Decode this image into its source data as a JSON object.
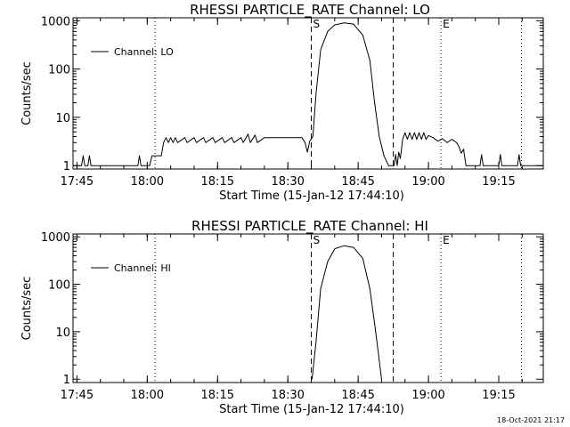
{
  "chart_data": [
    {
      "type": "line",
      "title": "RHESSI PARTICLE_RATE Channel: LO",
      "xlabel": "Start Time (15-Jan-12 17:44:10)",
      "ylabel": "Counts/sec",
      "x_tick_labels": [
        "17:45",
        "18:00",
        "18:15",
        "18:30",
        "18:45",
        "19:00",
        "19:15"
      ],
      "y_tick_labels": [
        "1",
        "10",
        "100",
        "1000"
      ],
      "yscale": "log",
      "xlim": [
        "17:44:10",
        "19:24:30"
      ],
      "ylim": [
        0.85,
        1150
      ],
      "legend": {
        "label": "Channel: LO",
        "placement": "top-left"
      },
      "markers": [
        {
          "time": "18:35:00",
          "style": "dashed",
          "label": "S"
        },
        {
          "time": "18:52:30",
          "style": "dashed",
          "label": ""
        },
        {
          "time": "18:01:40",
          "style": "dotted",
          "label": ""
        },
        {
          "time": "19:02:40",
          "style": "dotted",
          "label": "E"
        },
        {
          "time": "19:19:50",
          "style": "dotted",
          "label": ""
        }
      ],
      "series": [
        {
          "name": "Channel: LO",
          "points": [
            [
              "17:44:10",
              1
            ],
            [
              "17:46:00",
              1
            ],
            [
              "17:46:20",
              1.6
            ],
            [
              "17:46:40",
              1
            ],
            [
              "17:47:20",
              1
            ],
            [
              "17:47:40",
              1.6
            ],
            [
              "17:48:00",
              1
            ],
            [
              "17:58:00",
              1
            ],
            [
              "17:58:20",
              1.6
            ],
            [
              "17:58:40",
              1
            ],
            [
              "18:00:30",
              1
            ],
            [
              "18:01:00",
              1.6
            ],
            [
              "18:03:00",
              1.6
            ],
            [
              "18:03:30",
              3
            ],
            [
              "18:04:00",
              3.8
            ],
            [
              "18:04:30",
              3
            ],
            [
              "18:05:00",
              3.8
            ],
            [
              "18:05:30",
              3
            ],
            [
              "18:06:00",
              3.8
            ],
            [
              "18:06:30",
              3
            ],
            [
              "18:08:00",
              3.8
            ],
            [
              "18:08:30",
              3
            ],
            [
              "18:10:00",
              3.8
            ],
            [
              "18:10:30",
              3
            ],
            [
              "18:12:00",
              3.8
            ],
            [
              "18:12:30",
              3
            ],
            [
              "18:14:00",
              3.8
            ],
            [
              "18:14:30",
              3
            ],
            [
              "18:16:00",
              3.8
            ],
            [
              "18:16:30",
              3
            ],
            [
              "18:18:00",
              3.8
            ],
            [
              "18:18:30",
              3
            ],
            [
              "18:20:00",
              3.8
            ],
            [
              "18:20:30",
              3
            ],
            [
              "18:21:30",
              4.5
            ],
            [
              "18:22:00",
              3
            ],
            [
              "18:23:00",
              4.3
            ],
            [
              "18:23:30",
              3
            ],
            [
              "18:25:00",
              3.8
            ],
            [
              "18:25:30",
              3.8
            ],
            [
              "18:27:00",
              3.8
            ],
            [
              "18:29:00",
              3.8
            ],
            [
              "18:31:00",
              3.8
            ],
            [
              "18:33:00",
              3.8
            ],
            [
              "18:33:40",
              3
            ],
            [
              "18:34:10",
              1.9
            ],
            [
              "18:34:40",
              3.2
            ],
            [
              "18:35:20",
              4
            ],
            [
              "18:36:00",
              30
            ],
            [
              "18:37:00",
              250
            ],
            [
              "18:38:30",
              600
            ],
            [
              "18:40:00",
              820
            ],
            [
              "18:42:00",
              900
            ],
            [
              "18:44:00",
              850
            ],
            [
              "18:46:00",
              500
            ],
            [
              "18:47:30",
              150
            ],
            [
              "18:48:30",
              20
            ],
            [
              "18:49:30",
              4
            ],
            [
              "18:50:30",
              1.6
            ],
            [
              "18:51:30",
              1
            ],
            [
              "18:52:40",
              1
            ],
            [
              "18:53:00",
              1.7
            ],
            [
              "18:53:20",
              1
            ],
            [
              "18:53:40",
              1.9
            ],
            [
              "18:54:00",
              1.4
            ],
            [
              "18:54:30",
              3.5
            ],
            [
              "18:55:00",
              4.8
            ],
            [
              "18:55:30",
              3.5
            ],
            [
              "18:56:00",
              4.8
            ],
            [
              "18:56:30",
              3.5
            ],
            [
              "18:57:00",
              4.8
            ],
            [
              "18:57:30",
              3.5
            ],
            [
              "18:58:00",
              4.8
            ],
            [
              "18:58:30",
              3.5
            ],
            [
              "18:59:00",
              4.8
            ],
            [
              "18:59:30",
              3.5
            ],
            [
              "19:00:00",
              4.2
            ],
            [
              "19:01:00",
              3.8
            ],
            [
              "19:02:00",
              3.2
            ],
            [
              "19:03:00",
              3.6
            ],
            [
              "19:04:00",
              3
            ],
            [
              "19:05:00",
              3.5
            ],
            [
              "19:06:00",
              3
            ],
            [
              "19:06:30",
              2.5
            ],
            [
              "19:07:00",
              1.8
            ],
            [
              "19:07:30",
              2.2
            ],
            [
              "19:08:00",
              1
            ],
            [
              "19:11:00",
              1
            ],
            [
              "19:11:20",
              1.7
            ],
            [
              "19:11:40",
              1
            ],
            [
              "19:15:00",
              1
            ],
            [
              "19:15:20",
              1.7
            ],
            [
              "19:15:40",
              1
            ],
            [
              "19:19:00",
              1
            ],
            [
              "19:19:20",
              1.7
            ],
            [
              "19:19:40",
              1
            ],
            [
              "19:24:30",
              1
            ]
          ]
        }
      ]
    },
    {
      "type": "line",
      "title": "RHESSI PARTICLE_RATE Channel: HI",
      "xlabel": "Start Time (15-Jan-12 17:44:10)",
      "ylabel": "Counts/sec",
      "x_tick_labels": [
        "17:45",
        "18:00",
        "18:15",
        "18:30",
        "18:45",
        "19:00",
        "19:15"
      ],
      "y_tick_labels": [
        "1",
        "10",
        "100",
        "1000"
      ],
      "yscale": "log",
      "xlim": [
        "17:44:10",
        "19:24:30"
      ],
      "ylim": [
        0.85,
        1150
      ],
      "legend": {
        "label": "Channel: HI",
        "placement": "top-left"
      },
      "markers": [
        {
          "time": "18:35:00",
          "style": "dashed",
          "label": "S"
        },
        {
          "time": "18:52:30",
          "style": "dashed",
          "label": ""
        },
        {
          "time": "18:01:40",
          "style": "dotted",
          "label": ""
        },
        {
          "time": "19:02:40",
          "style": "dotted",
          "label": "E"
        },
        {
          "time": "19:19:50",
          "style": "dotted",
          "label": ""
        }
      ],
      "series": [
        {
          "name": "Channel: HI",
          "points": [
            [
              "18:35:10",
              1
            ],
            [
              "18:36:00",
              6
            ],
            [
              "18:37:00",
              80
            ],
            [
              "18:38:30",
              300
            ],
            [
              "18:40:00",
              560
            ],
            [
              "18:42:00",
              650
            ],
            [
              "18:44:00",
              600
            ],
            [
              "18:46:00",
              350
            ],
            [
              "18:47:30",
              80
            ],
            [
              "18:48:30",
              15
            ],
            [
              "18:49:30",
              2.5
            ],
            [
              "18:50:00",
              1
            ]
          ]
        }
      ]
    }
  ],
  "timestamp": "18-Oct-2021 21:17",
  "colors": {
    "background": "#ffffff",
    "ink": "#000000"
  }
}
